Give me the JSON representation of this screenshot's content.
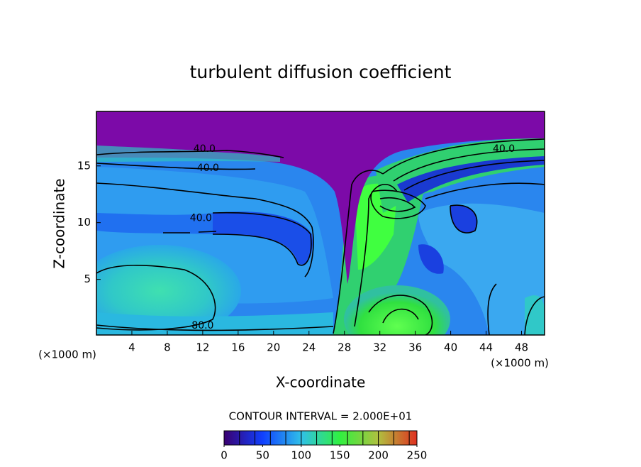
{
  "chart_data": {
    "type": "contour",
    "title": "turbulent diffusion coefficient",
    "xlabel": "X-coordinate",
    "ylabel": "Z-coordinate",
    "unit_label": "(×1000 m)",
    "xlim": [
      0,
      50.6
    ],
    "ylim": [
      0.1,
      19.8
    ],
    "xticks": [
      4,
      8,
      12,
      16,
      20,
      24,
      28,
      32,
      36,
      40,
      44,
      48
    ],
    "yticks": [
      5,
      10,
      15
    ],
    "contour_interval": {
      "value": 20,
      "label": "CONTOUR INTERVAL = 2.000E+01"
    },
    "contour_labels": [
      {
        "x": 12.2,
        "y": 16.5,
        "label": "40.0"
      },
      {
        "x": 12.6,
        "y": 14.8,
        "label": "40.0"
      },
      {
        "x": 11.8,
        "y": 10.4,
        "label": "40.0"
      },
      {
        "x": 12.0,
        "y": 0.9,
        "label": "80.0"
      },
      {
        "x": 46.0,
        "y": 16.5,
        "label": "40.0"
      }
    ],
    "colorbar": {
      "lim": [
        0,
        250
      ],
      "ticks": [
        0,
        50,
        100,
        150,
        200,
        250
      ],
      "colormap": [
        "#3a0070",
        "#1040ff",
        "#30c0e8",
        "#30f040",
        "#b0c040",
        "#e03020"
      ]
    }
  }
}
